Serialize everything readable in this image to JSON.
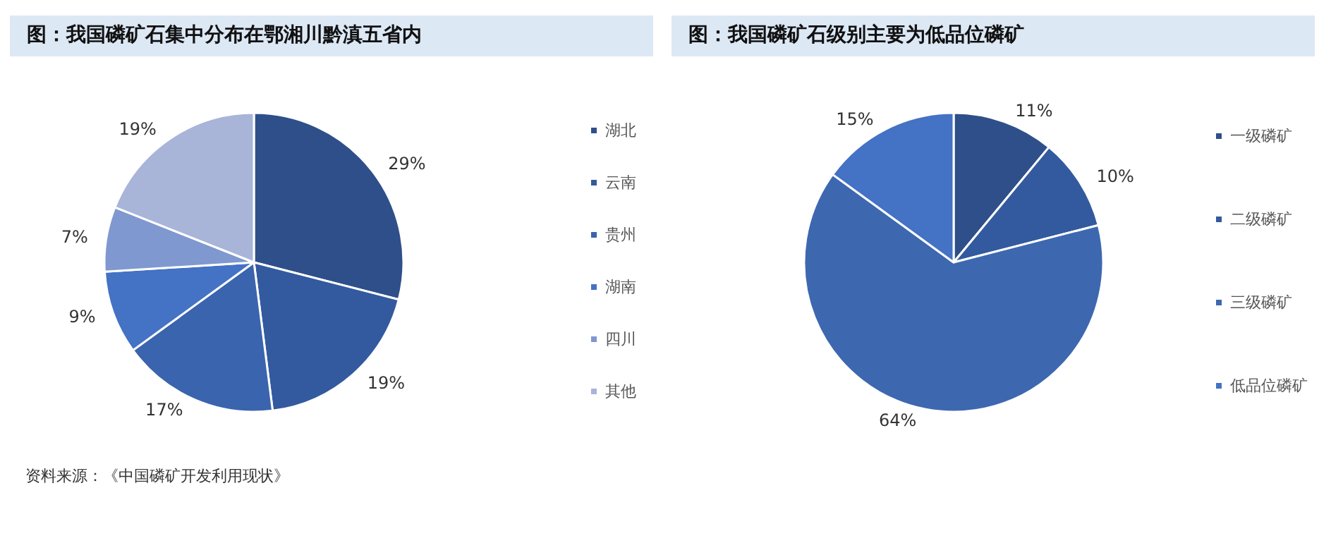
{
  "chart_data": [
    {
      "type": "pie",
      "title": "图：我国磷矿石集中分布在鄂湘川黔滇五省内",
      "categories": [
        "湖北",
        "云南",
        "贵州",
        "湖南",
        "四川",
        "其他"
      ],
      "values": [
        29,
        19,
        17,
        9,
        7,
        19
      ],
      "value_labels": [
        "29%",
        "19%",
        "17%",
        "9%",
        "7%",
        "19%"
      ],
      "colors": [
        "#2f4f8a",
        "#335a9e",
        "#3a64ae",
        "#4472c4",
        "#7f98d0",
        "#a8b4d8"
      ],
      "legend": "right",
      "annotations": [
        "资料来源：《中国磷矿开发利用现状》"
      ]
    },
    {
      "type": "pie",
      "title": "图：我国磷矿石级别主要为低品位磷矿",
      "categories": [
        "一级磷矿",
        "二级磷矿",
        "三级磷矿",
        "低品位磷矿"
      ],
      "values": [
        11,
        10,
        64,
        15
      ],
      "value_labels": [
        "11%",
        "10%",
        "64%",
        "15%"
      ],
      "colors": [
        "#2f4f8a",
        "#335a9e",
        "#3d68b0",
        "#4472c4"
      ],
      "legend": "right"
    }
  ]
}
